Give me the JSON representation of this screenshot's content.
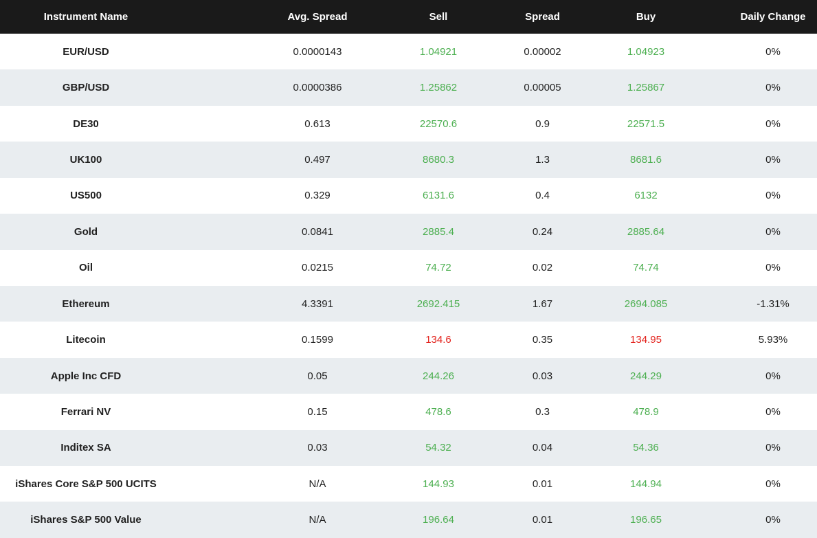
{
  "theme": {
    "header_bg": "#1a1a1a",
    "header_text": "#ffffff",
    "row_bg": "#ffffff",
    "row_stripe": "#e9edf0",
    "text_dark": "#212121",
    "green": "#4caf50",
    "red": "#e3231d"
  },
  "table": {
    "columns": {
      "name": "Instrument Name",
      "avg_spread": "Avg. Spread",
      "sell": "Sell",
      "spread": "Spread",
      "buy": "Buy",
      "daily_change": "Daily Change"
    },
    "rows": [
      {
        "name": "EUR/USD",
        "avg_spread": "0.0000143",
        "sell": "1.04921",
        "spread": "0.00002",
        "buy": "1.04923",
        "daily_change": "0%",
        "price_trend": "up"
      },
      {
        "name": "GBP/USD",
        "avg_spread": "0.0000386",
        "sell": "1.25862",
        "spread": "0.00005",
        "buy": "1.25867",
        "daily_change": "0%",
        "price_trend": "up"
      },
      {
        "name": "DE30",
        "avg_spread": "0.613",
        "sell": "22570.6",
        "spread": "0.9",
        "buy": "22571.5",
        "daily_change": "0%",
        "price_trend": "up"
      },
      {
        "name": "UK100",
        "avg_spread": "0.497",
        "sell": "8680.3",
        "spread": "1.3",
        "buy": "8681.6",
        "daily_change": "0%",
        "price_trend": "up"
      },
      {
        "name": "US500",
        "avg_spread": "0.329",
        "sell": "6131.6",
        "spread": "0.4",
        "buy": "6132",
        "daily_change": "0%",
        "price_trend": "up"
      },
      {
        "name": "Gold",
        "avg_spread": "0.0841",
        "sell": "2885.4",
        "spread": "0.24",
        "buy": "2885.64",
        "daily_change": "0%",
        "price_trend": "up"
      },
      {
        "name": "Oil",
        "avg_spread": "0.0215",
        "sell": "74.72",
        "spread": "0.02",
        "buy": "74.74",
        "daily_change": "0%",
        "price_trend": "up"
      },
      {
        "name": "Ethereum",
        "avg_spread": "4.3391",
        "sell": "2692.415",
        "spread": "1.67",
        "buy": "2694.085",
        "daily_change": "-1.31%",
        "price_trend": "up"
      },
      {
        "name": "Litecoin",
        "avg_spread": "0.1599",
        "sell": "134.6",
        "spread": "0.35",
        "buy": "134.95",
        "daily_change": "5.93%",
        "price_trend": "down"
      },
      {
        "name": "Apple Inc CFD",
        "avg_spread": "0.05",
        "sell": "244.26",
        "spread": "0.03",
        "buy": "244.29",
        "daily_change": "0%",
        "price_trend": "up"
      },
      {
        "name": "Ferrari NV",
        "avg_spread": "0.15",
        "sell": "478.6",
        "spread": "0.3",
        "buy": "478.9",
        "daily_change": "0%",
        "price_trend": "up"
      },
      {
        "name": "Inditex SA",
        "avg_spread": "0.03",
        "sell": "54.32",
        "spread": "0.04",
        "buy": "54.36",
        "daily_change": "0%",
        "price_trend": "up"
      },
      {
        "name": "iShares Core S&P 500 UCITS",
        "avg_spread": "N/A",
        "sell": "144.93",
        "spread": "0.01",
        "buy": "144.94",
        "daily_change": "0%",
        "price_trend": "up"
      },
      {
        "name": "iShares S&P 500 Value",
        "avg_spread": "N/A",
        "sell": "196.64",
        "spread": "0.01",
        "buy": "196.65",
        "daily_change": "0%",
        "price_trend": "up"
      }
    ]
  }
}
